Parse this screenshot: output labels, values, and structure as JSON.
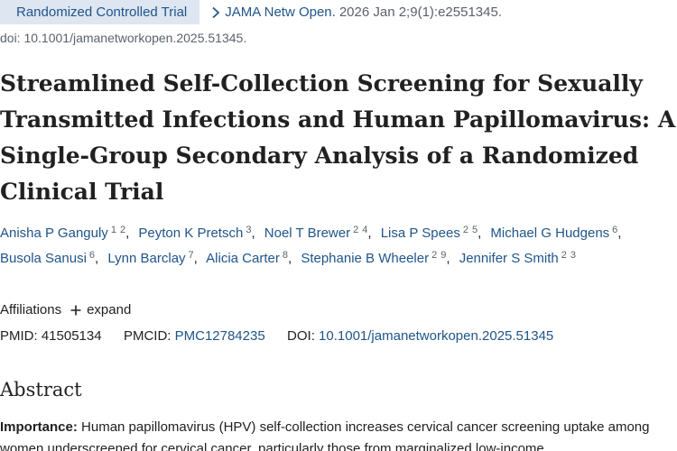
{
  "citation": {
    "publication_type": "Randomized Controlled Trial",
    "journal": "JAMA Netw Open.",
    "details": "2026 Jan 2;9(1):e2551345.",
    "doi_line": "doi: 10.1001/jamanetworkopen.2025.51345."
  },
  "article": {
    "title": "Streamlined Self-Collection Screening for Sexually Transmitted Infections and Human Papillomavirus: A Single-Group Secondary Analysis of a Randomized Clinical Trial"
  },
  "authors": [
    {
      "name": "Anisha P Ganguly",
      "affs": [
        "1",
        "2"
      ]
    },
    {
      "name": "Peyton K Pretsch",
      "affs": [
        "3"
      ]
    },
    {
      "name": "Noel T Brewer",
      "affs": [
        "2",
        "4"
      ]
    },
    {
      "name": "Lisa P Spees",
      "affs": [
        "2",
        "5"
      ]
    },
    {
      "name": "Michael G Hudgens",
      "affs": [
        "6"
      ]
    },
    {
      "name": "Busola Sanusi",
      "affs": [
        "6"
      ]
    },
    {
      "name": "Lynn Barclay",
      "affs": [
        "7"
      ]
    },
    {
      "name": "Alicia Carter",
      "affs": [
        "8"
      ]
    },
    {
      "name": "Stephanie B Wheeler",
      "affs": [
        "2",
        "9"
      ]
    },
    {
      "name": "Jennifer S Smith",
      "affs": [
        "2",
        "3"
      ]
    }
  ],
  "affiliations": {
    "label": "Affiliations",
    "expand_label": "expand"
  },
  "identifiers": {
    "pmid_label": "PMID:",
    "pmid": "41505134",
    "pmcid_label": "PMCID:",
    "pmcid": "PMC12784235",
    "doi_label": "DOI:",
    "doi": "10.1001/jamanetworkopen.2025.51345"
  },
  "abstract": {
    "heading": "Abstract",
    "importance_label": "Importance:",
    "importance_text": "Human papillomavirus (HPV) self-collection increases cervical cancer screening uptake among women underscreened for cervical cancer, particularly those from marginalized low-income"
  },
  "colors": {
    "link": "#20558a",
    "badge_bg": "#dde6f1",
    "muted": "#5b616b",
    "text": "#212121"
  },
  "icons": {
    "journal": "chevron-right-icon",
    "expand": "plus-icon"
  }
}
